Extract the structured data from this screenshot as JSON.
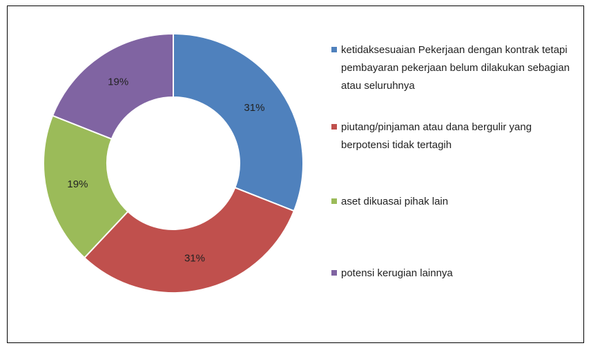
{
  "chart_data": {
    "type": "donut",
    "categories": [
      "ketidaksesuaian Pekerjaan dengan kontrak tetapi pembayaran pekerjaan belum dilakukan sebagian atau seluruhnya",
      "piutang/pinjaman atau dana bergulir yang berpotensi tidak tertagih",
      "aset dikuasai pihak lain",
      "potensi kerugian lainnya"
    ],
    "values": [
      31,
      31,
      19,
      19
    ],
    "value_labels": [
      "31%",
      "31%",
      "19%",
      "19%"
    ],
    "colors": [
      "#4f81bd",
      "#c0504d",
      "#9bbb59",
      "#8064a2"
    ],
    "legend": "right"
  }
}
